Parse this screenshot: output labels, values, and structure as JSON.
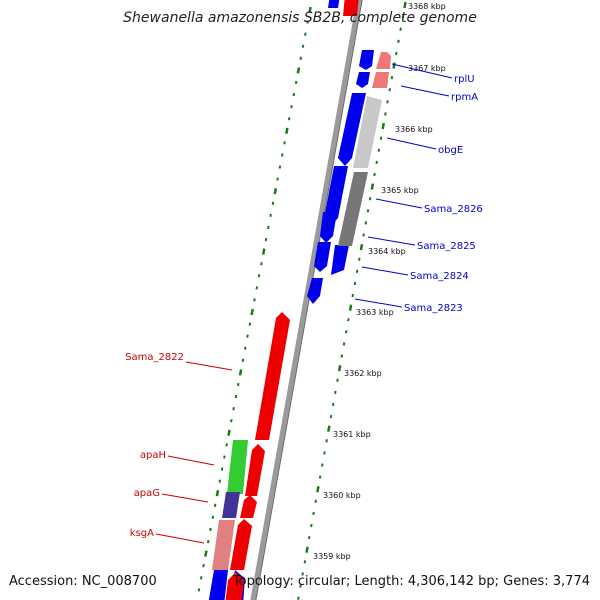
{
  "title": "Shewanella amazonensis SB2B, complete genome",
  "accession_text": "Accession: NC_008700",
  "topology_text": "Topology: circular; Length: 4,306,142 bp; Genes: 3,774",
  "colors": {
    "backbone": "#9a9a9a",
    "tick": "#1a7a1a",
    "forward_gene": "#0000ee",
    "reverse_gene": "#ee0000",
    "label_forward": "#0000cc",
    "label_reverse": "#cc0000"
  },
  "scale_labels": [
    {
      "kbp": 3368,
      "text": "3368 kbp"
    },
    {
      "kbp": 3367,
      "text": "3367 kbp"
    },
    {
      "kbp": 3366,
      "text": "3366 kbp"
    },
    {
      "kbp": 3365,
      "text": "3365 kbp"
    },
    {
      "kbp": 3364,
      "text": "3364 kbp"
    },
    {
      "kbp": 3363,
      "text": "3363 kbp"
    },
    {
      "kbp": 3362,
      "text": "3362 kbp"
    },
    {
      "kbp": 3361,
      "text": "3361 kbp"
    },
    {
      "kbp": 3360,
      "text": "3360 kbp"
    },
    {
      "kbp": 3359,
      "text": "3359 kbp"
    }
  ],
  "gene_labels_right": [
    "rplU",
    "rpmA",
    "obgE",
    "Sama_2826",
    "Sama_2825",
    "Sama_2824",
    "Sama_2823"
  ],
  "gene_labels_left": [
    "Sama_2822",
    "apaH",
    "apaG",
    "ksgA"
  ]
}
